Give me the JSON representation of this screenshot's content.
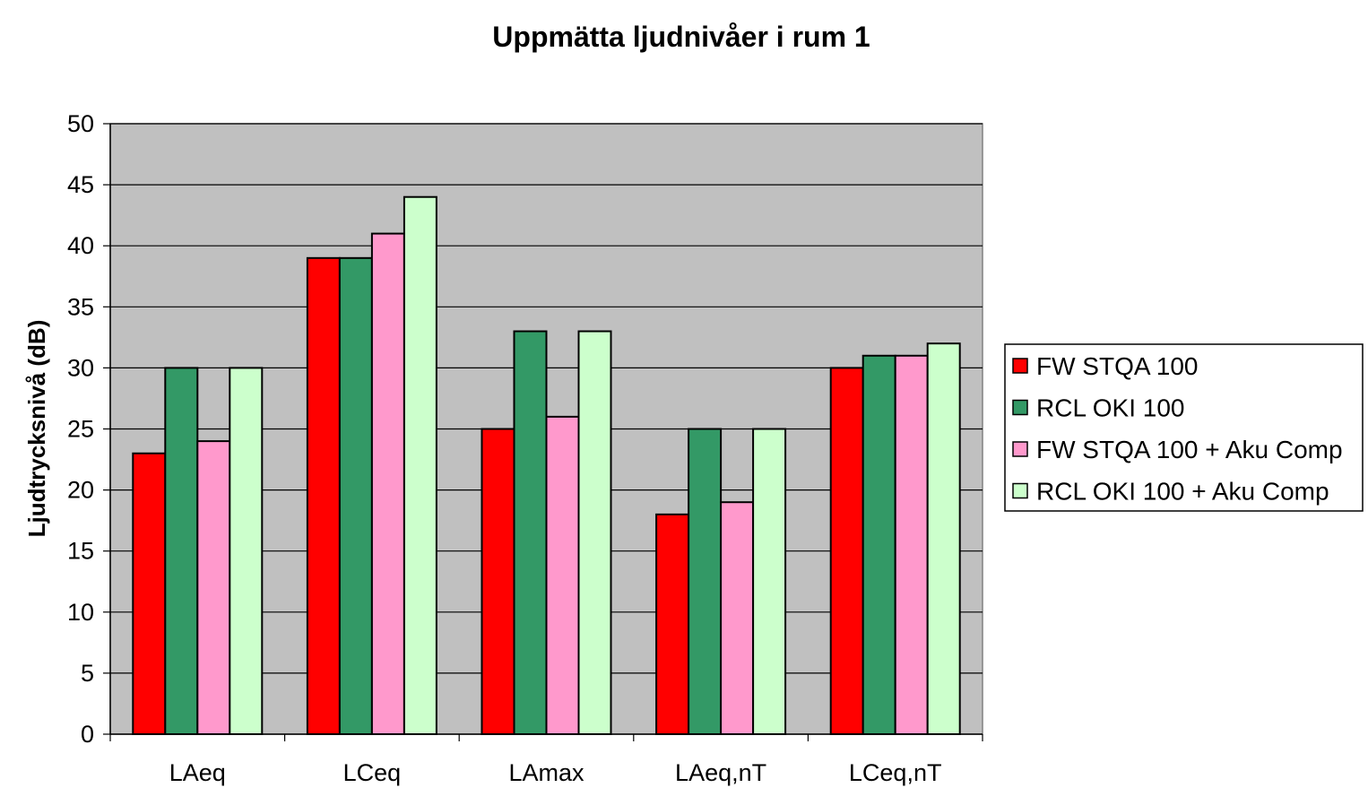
{
  "chart_data": {
    "type": "bar",
    "title": "Uppmätta ljudnivåer i rum 1",
    "xlabel": "",
    "ylabel": "Ljudtrycksnivå (dB)",
    "ylim": [
      0,
      50
    ],
    "yticks": [
      "0",
      "5",
      "10",
      "15",
      "20",
      "25",
      "30",
      "35",
      "40",
      "45",
      "50"
    ],
    "grid": true,
    "legend_position": "right",
    "categories": [
      "LAeq",
      "LCeq",
      "LAmax",
      "LAeq,nT",
      "LCeq,nT"
    ],
    "series": [
      {
        "name": "FW STQA 100",
        "color": "#ff0000",
        "values": [
          23,
          39,
          25,
          18,
          30
        ]
      },
      {
        "name": "RCL OKI 100",
        "color": "#339966",
        "values": [
          30,
          39,
          33,
          25,
          31
        ]
      },
      {
        "name": "FW STQA 100 + Aku Comp",
        "color": "#ff99cc",
        "values": [
          24,
          41,
          26,
          19,
          31
        ]
      },
      {
        "name": "RCL OKI 100 + Aku Comp",
        "color": "#ccffcc",
        "values": [
          30,
          44,
          33,
          25,
          32
        ]
      }
    ],
    "plot_background": "#c0c0c0"
  }
}
